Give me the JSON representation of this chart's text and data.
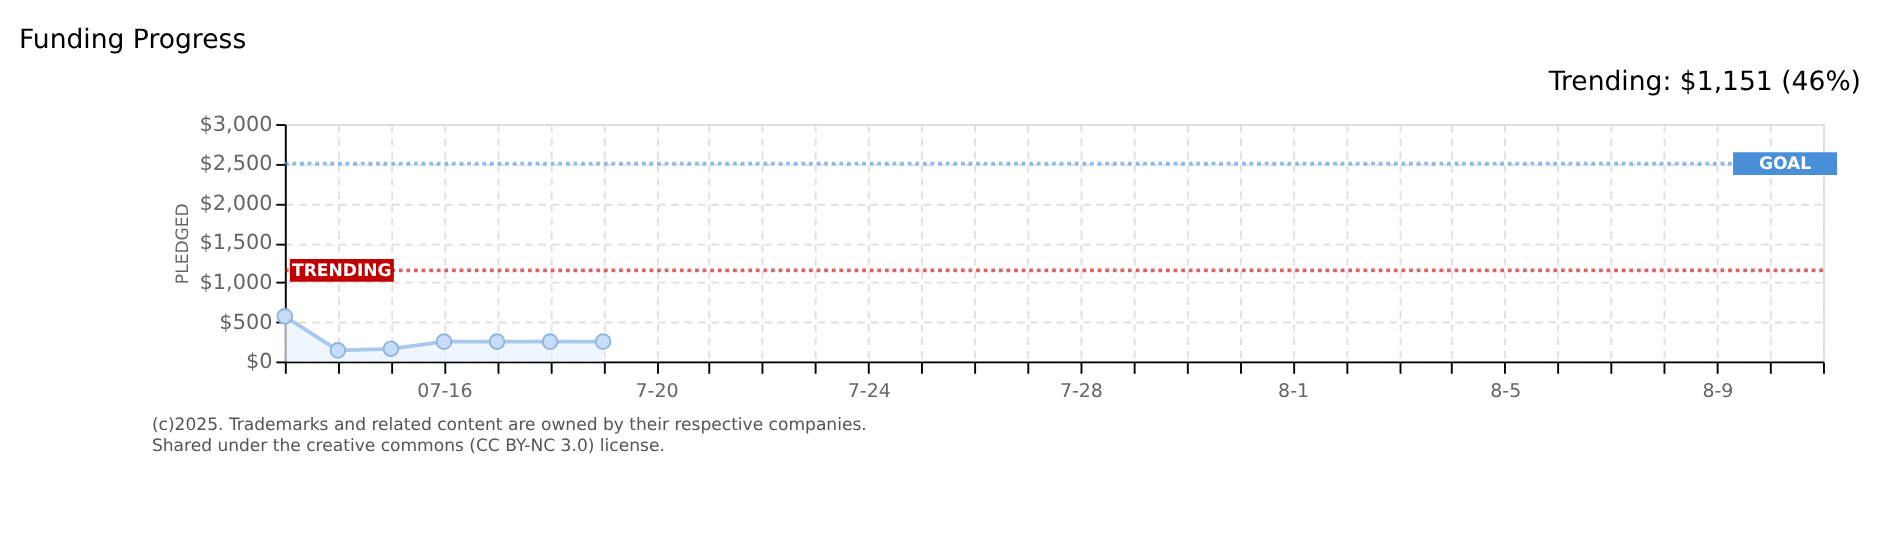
{
  "chart_data": {
    "type": "area",
    "title": "Funding Progress",
    "ylabel": "PLEDGED",
    "annotations": [
      "Trending: $1,151 (46%)",
      "(c)2025. Trademarks and related content are owned by their respective companies.",
      "Shared under the creative commons (CC BY-NC 3.0) license."
    ],
    "x": [
      "2025-07-13",
      "2025-07-14",
      "2025-07-15",
      "2025-07-16",
      "2025-07-17",
      "2025-07-18",
      "2025-07-19"
    ],
    "series": [
      {
        "color": "#a9c8ee",
        "values": [
          570,
          140,
          160,
          250,
          250,
          250,
          250
        ]
      }
    ],
    "marker": "circle",
    "grid": true,
    "xlim": [
      "2025-07-13",
      "2025-08-11"
    ],
    "xticks": [
      {
        "value": "2025-07-13",
        "label": null
      },
      {
        "value": "2025-07-14",
        "label": null
      },
      {
        "value": "2025-07-15",
        "label": null
      },
      {
        "value": "2025-07-16",
        "label": "07-16"
      },
      {
        "value": "2025-07-17",
        "label": null
      },
      {
        "value": "2025-07-18",
        "label": null
      },
      {
        "value": "2025-07-19",
        "label": null
      },
      {
        "value": "2025-07-20",
        "label": "7-20"
      },
      {
        "value": "2025-07-21",
        "label": null
      },
      {
        "value": "2025-07-22",
        "label": null
      },
      {
        "value": "2025-07-23",
        "label": null
      },
      {
        "value": "2025-07-24",
        "label": "7-24"
      },
      {
        "value": "2025-07-25",
        "label": null
      },
      {
        "value": "2025-07-26",
        "label": null
      },
      {
        "value": "2025-07-27",
        "label": null
      },
      {
        "value": "2025-07-28",
        "label": "7-28"
      },
      {
        "value": "2025-07-29",
        "label": null
      },
      {
        "value": "2025-07-30",
        "label": null
      },
      {
        "value": "2025-07-31",
        "label": null
      },
      {
        "value": "2025-08-01",
        "label": "8-1"
      },
      {
        "value": "2025-08-02",
        "label": null
      },
      {
        "value": "2025-08-03",
        "label": null
      },
      {
        "value": "2025-08-04",
        "label": null
      },
      {
        "value": "2025-08-05",
        "label": "8-5"
      },
      {
        "value": "2025-08-06",
        "label": null
      },
      {
        "value": "2025-08-07",
        "label": null
      },
      {
        "value": "2025-08-08",
        "label": null
      },
      {
        "value": "2025-08-09",
        "label": "8-9"
      },
      {
        "value": "2025-08-10",
        "label": null
      },
      {
        "value": "2025-08-11",
        "label": null
      }
    ],
    "ylim": [
      0,
      3000
    ],
    "yticks": [
      {
        "value": 0,
        "label": "$0"
      },
      {
        "value": 500,
        "label": "$500"
      },
      {
        "value": 1000,
        "label": "$1,000"
      },
      {
        "value": 1500,
        "label": "$1,500"
      },
      {
        "value": 2000,
        "label": "$2,000"
      },
      {
        "value": 2500,
        "label": "$2,500"
      },
      {
        "value": 3000,
        "label": "$3,000"
      }
    ],
    "ref_lines": [
      {
        "axis": "y",
        "value": 2500,
        "label": "GOAL",
        "color": "#4a90d9",
        "line_style": "dotted"
      },
      {
        "axis": "y",
        "value": 1151,
        "label": "TRENDING",
        "color": "#c00000",
        "line_style": "dotted"
      }
    ]
  }
}
